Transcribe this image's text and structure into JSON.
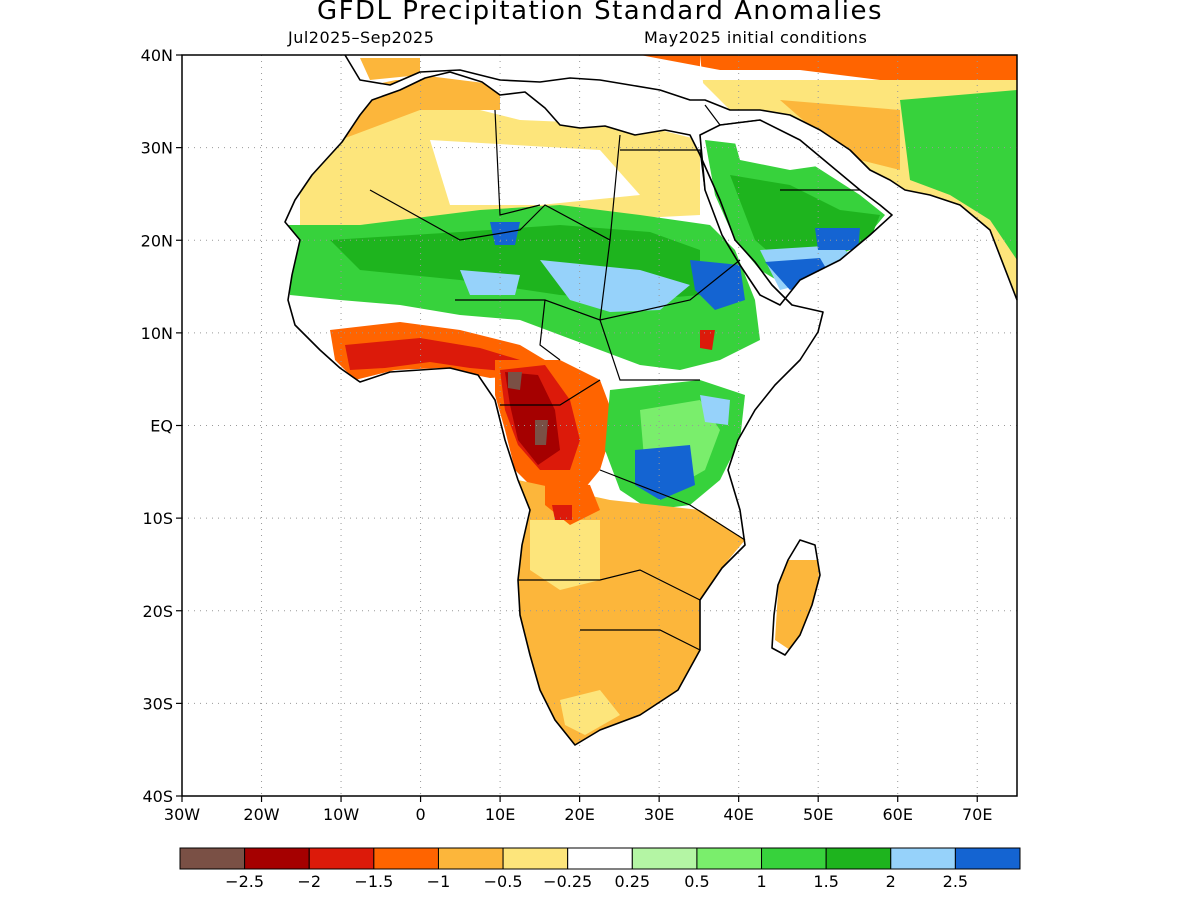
{
  "title": "GFDL Precipitation Standard Anomalies",
  "subtitle_left": "Jul2025–Sep2025",
  "subtitle_right": "May2025 initial conditions",
  "map": {
    "lon_range": [
      -30,
      75
    ],
    "lat_range": [
      -40,
      40
    ],
    "lat_ticks": [
      {
        "value": 40,
        "label": "40N"
      },
      {
        "value": 30,
        "label": "30N"
      },
      {
        "value": 20,
        "label": "20N"
      },
      {
        "value": 10,
        "label": "10N"
      },
      {
        "value": 0,
        "label": "EQ"
      },
      {
        "value": -10,
        "label": "10S"
      },
      {
        "value": -20,
        "label": "20S"
      },
      {
        "value": -30,
        "label": "30S"
      },
      {
        "value": -40,
        "label": "40S"
      }
    ],
    "lon_ticks": [
      {
        "value": -30,
        "label": "30W"
      },
      {
        "value": -20,
        "label": "20W"
      },
      {
        "value": -10,
        "label": "10W"
      },
      {
        "value": 0,
        "label": "0"
      },
      {
        "value": 10,
        "label": "10E"
      },
      {
        "value": 20,
        "label": "20E"
      },
      {
        "value": 30,
        "label": "30E"
      },
      {
        "value": 40,
        "label": "40E"
      },
      {
        "value": 50,
        "label": "50E"
      },
      {
        "value": 60,
        "label": "60E"
      },
      {
        "value": 70,
        "label": "70E"
      }
    ],
    "gridlines": "dotted"
  },
  "colorbar": {
    "colors": [
      "#7a5045",
      "#a50000",
      "#dc1a0a",
      "#ff6400",
      "#fcb63b",
      "#fde57b",
      "#ffffff",
      "#b4f5a4",
      "#7aee6c",
      "#37d23c",
      "#1eb41e",
      "#96d2fa",
      "#1464d2"
    ],
    "labels": [
      "−2.5",
      "−2",
      "−1.5",
      "−1",
      "−0.5",
      "−0.25",
      "0.25",
      "0.5",
      "1",
      "1.5",
      "2",
      "2.5"
    ]
  },
  "regions": [
    {
      "name": "sahel-wet-band",
      "category": "1.5",
      "color": "#37d23c"
    },
    {
      "name": "gulf-of-guinea-dry",
      "category": "-1.5",
      "color": "#dc1a0a"
    },
    {
      "name": "congo-very-dry",
      "category": "-2",
      "color": "#a50000"
    },
    {
      "name": "southern-africa-dry",
      "category": "-0.5",
      "color": "#fcb63b"
    },
    {
      "name": "east-africa-wet",
      "category": "2.5",
      "color": "#1464d2"
    },
    {
      "name": "arabia-wet",
      "category": "2",
      "color": "#96d2fa"
    }
  ]
}
